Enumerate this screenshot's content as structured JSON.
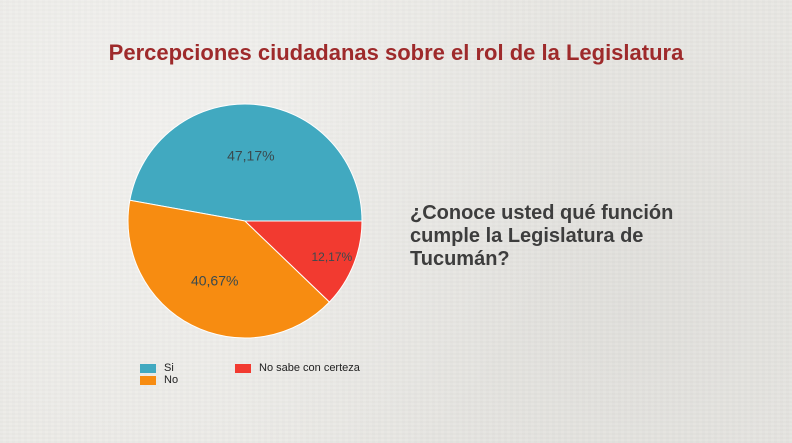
{
  "chart_data": {
    "type": "pie",
    "title": "Percepciones ciudadanas sobre el rol de la Legislatura",
    "question": "¿Conoce usted qué función cumple la Legislatura de Tucumán?",
    "legend_position": "bottom-left",
    "slices": [
      {
        "label": "Si",
        "value": 47.17,
        "value_label": "47,17%",
        "color": "#41a9c0"
      },
      {
        "label": "No",
        "value": 40.67,
        "value_label": "40,67%",
        "color": "#f78c11"
      },
      {
        "label": "No sabe con certeza",
        "value": 12.17,
        "value_label": "12,17%",
        "color": "#f23a30"
      }
    ]
  }
}
